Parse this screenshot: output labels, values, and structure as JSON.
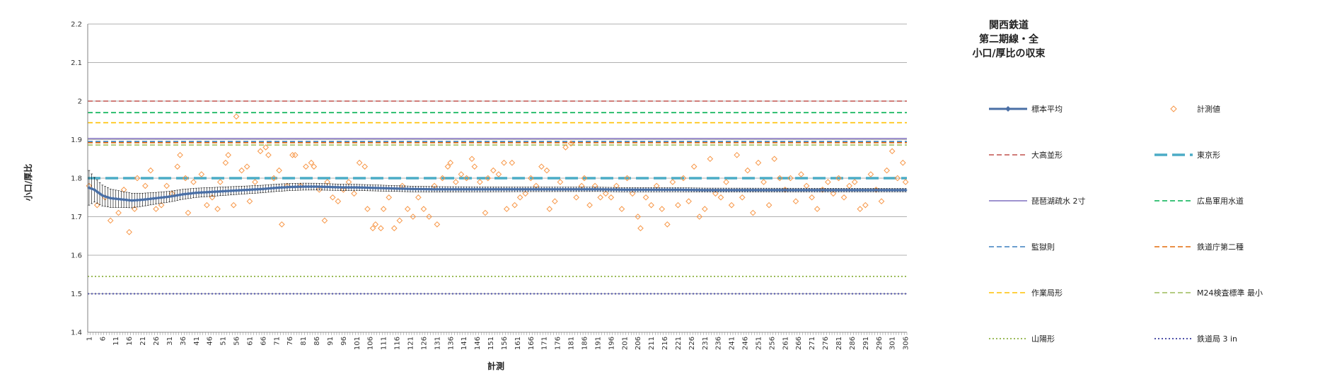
{
  "chart_data": {
    "type": "scatter",
    "title": [
      "関西鉄道",
      "第二期線・全",
      "小口/厚比の収束"
    ],
    "xlabel": "計測",
    "ylabel": "小口/厚比",
    "ylim": [
      1.4,
      2.2
    ],
    "y_ticks": [
      "1.4",
      "1.5",
      "1.6",
      "1.7",
      "1.8",
      "1.9",
      "2",
      "2.1",
      "2.2"
    ],
    "x_range": [
      1,
      306
    ],
    "x_ticks": [
      "1",
      "6",
      "11",
      "16",
      "21",
      "26",
      "31",
      "36",
      "41",
      "46",
      "51",
      "56",
      "61",
      "66",
      "71",
      "76",
      "81",
      "86",
      "91",
      "96",
      "101",
      "106",
      "111",
      "116",
      "121",
      "126",
      "131",
      "136",
      "141",
      "146",
      "151",
      "156",
      "161",
      "166",
      "171",
      "176",
      "181",
      "186",
      "191",
      "196",
      "201",
      "206",
      "211",
      "216",
      "221",
      "226",
      "231",
      "236",
      "241",
      "246",
      "251",
      "256",
      "261",
      "266",
      "271",
      "276",
      "281",
      "286",
      "291",
      "296",
      "301",
      "306"
    ],
    "grid": true,
    "legend_position": "right",
    "series": [
      {
        "name": "標本平均",
        "kind": "mean",
        "color": "#4a6fa5"
      },
      {
        "name": "計測値",
        "kind": "measured",
        "color": "#f79646"
      },
      {
        "name": "大高並形",
        "kind": "reference",
        "value": 2.0,
        "color": "#c0504d",
        "dash": "dash"
      },
      {
        "name": "東京形",
        "kind": "reference",
        "value": 1.8,
        "color": "#4bacc6",
        "dash": "longdash"
      },
      {
        "name": "琵琶湖疏水 2寸",
        "kind": "reference",
        "value": 1.903,
        "color": "#7f6fbf",
        "dash": "solid"
      },
      {
        "name": "広島軍用水道",
        "kind": "reference",
        "value": 1.97,
        "color": "#00b050",
        "dash": "dash"
      },
      {
        "name": "監獄則",
        "kind": "reference",
        "value": 1.895,
        "color": "#3b7fbf",
        "dash": "dash"
      },
      {
        "name": "鉄道庁第二種",
        "kind": "reference",
        "value": 1.892,
        "color": "#e46c0a",
        "dash": "dash"
      },
      {
        "name": "作業局形",
        "kind": "reference",
        "value": 1.944,
        "color": "#ffc000",
        "dash": "dash"
      },
      {
        "name": "M24検査標準 最小",
        "kind": "reference",
        "value": 1.886,
        "color": "#9bbb59",
        "dash": "dash"
      },
      {
        "name": "山陽形",
        "kind": "reference",
        "value": 1.545,
        "color": "#9bbb59",
        "dash": "dot"
      },
      {
        "name": "鉄道局 3 in",
        "kind": "reference",
        "value": 1.5,
        "color": "#4f52a8",
        "dash": "dot"
      }
    ],
    "mean_values": [
      {
        "x": 1,
        "y": 1.775
      },
      {
        "x": 3,
        "y": 1.77
      },
      {
        "x": 6,
        "y": 1.755
      },
      {
        "x": 9,
        "y": 1.748
      },
      {
        "x": 13,
        "y": 1.745
      },
      {
        "x": 17,
        "y": 1.742
      },
      {
        "x": 21,
        "y": 1.744
      },
      {
        "x": 26,
        "y": 1.748
      },
      {
        "x": 31,
        "y": 1.752
      },
      {
        "x": 36,
        "y": 1.758
      },
      {
        "x": 41,
        "y": 1.762
      },
      {
        "x": 46,
        "y": 1.764
      },
      {
        "x": 51,
        "y": 1.766
      },
      {
        "x": 56,
        "y": 1.768
      },
      {
        "x": 61,
        "y": 1.77
      },
      {
        "x": 66,
        "y": 1.772
      },
      {
        "x": 71,
        "y": 1.775
      },
      {
        "x": 76,
        "y": 1.777
      },
      {
        "x": 81,
        "y": 1.778
      },
      {
        "x": 86,
        "y": 1.778
      },
      {
        "x": 91,
        "y": 1.777
      },
      {
        "x": 96,
        "y": 1.776
      },
      {
        "x": 101,
        "y": 1.776
      },
      {
        "x": 106,
        "y": 1.775
      },
      {
        "x": 111,
        "y": 1.774
      },
      {
        "x": 121,
        "y": 1.772
      },
      {
        "x": 131,
        "y": 1.771
      },
      {
        "x": 141,
        "y": 1.771
      },
      {
        "x": 151,
        "y": 1.771
      },
      {
        "x": 161,
        "y": 1.771
      },
      {
        "x": 171,
        "y": 1.771
      },
      {
        "x": 181,
        "y": 1.771
      },
      {
        "x": 191,
        "y": 1.771
      },
      {
        "x": 201,
        "y": 1.77
      },
      {
        "x": 211,
        "y": 1.77
      },
      {
        "x": 221,
        "y": 1.77
      },
      {
        "x": 231,
        "y": 1.769
      },
      {
        "x": 241,
        "y": 1.769
      },
      {
        "x": 251,
        "y": 1.769
      },
      {
        "x": 261,
        "y": 1.769
      },
      {
        "x": 271,
        "y": 1.769
      },
      {
        "x": 281,
        "y": 1.769
      },
      {
        "x": 291,
        "y": 1.769
      },
      {
        "x": 306,
        "y": 1.769
      }
    ],
    "error_half_widths": [
      {
        "x": 1,
        "e": 0.045
      },
      {
        "x": 3,
        "e": 0.032
      },
      {
        "x": 6,
        "e": 0.027
      },
      {
        "x": 9,
        "e": 0.024
      },
      {
        "x": 13,
        "e": 0.021
      },
      {
        "x": 17,
        "e": 0.019
      },
      {
        "x": 21,
        "e": 0.017
      },
      {
        "x": 26,
        "e": 0.015
      },
      {
        "x": 31,
        "e": 0.014
      },
      {
        "x": 41,
        "e": 0.012
      },
      {
        "x": 51,
        "e": 0.011
      },
      {
        "x": 61,
        "e": 0.01
      },
      {
        "x": 81,
        "e": 0.009
      },
      {
        "x": 101,
        "e": 0.008
      },
      {
        "x": 131,
        "e": 0.007
      },
      {
        "x": 161,
        "e": 0.006
      },
      {
        "x": 201,
        "e": 0.0055
      },
      {
        "x": 251,
        "e": 0.005
      },
      {
        "x": 306,
        "e": 0.0045
      }
    ],
    "measured_points": [
      [
        1,
        1.78
      ],
      [
        4,
        1.73
      ],
      [
        7,
        1.75
      ],
      [
        9,
        1.69
      ],
      [
        12,
        1.71
      ],
      [
        14,
        1.77
      ],
      [
        16,
        1.66
      ],
      [
        18,
        1.72
      ],
      [
        19,
        1.8
      ],
      [
        22,
        1.78
      ],
      [
        24,
        1.82
      ],
      [
        26,
        1.72
      ],
      [
        28,
        1.73
      ],
      [
        30,
        1.78
      ],
      [
        32,
        1.76
      ],
      [
        34,
        1.83
      ],
      [
        35,
        1.86
      ],
      [
        37,
        1.8
      ],
      [
        38,
        1.71
      ],
      [
        40,
        1.79
      ],
      [
        43,
        1.81
      ],
      [
        45,
        1.73
      ],
      [
        47,
        1.75
      ],
      [
        49,
        1.72
      ],
      [
        50,
        1.79
      ],
      [
        52,
        1.84
      ],
      [
        53,
        1.86
      ],
      [
        55,
        1.73
      ],
      [
        56,
        1.96
      ],
      [
        58,
        1.82
      ],
      [
        60,
        1.83
      ],
      [
        61,
        1.74
      ],
      [
        63,
        1.79
      ],
      [
        65,
        1.87
      ],
      [
        67,
        1.88
      ],
      [
        68,
        1.86
      ],
      [
        70,
        1.8
      ],
      [
        72,
        1.82
      ],
      [
        73,
        1.68
      ],
      [
        75,
        1.78
      ],
      [
        77,
        1.86
      ],
      [
        78,
        1.86
      ],
      [
        80,
        1.78
      ],
      [
        82,
        1.83
      ],
      [
        84,
        1.84
      ],
      [
        85,
        1.83
      ],
      [
        87,
        1.77
      ],
      [
        89,
        1.69
      ],
      [
        90,
        1.79
      ],
      [
        92,
        1.75
      ],
      [
        94,
        1.74
      ],
      [
        96,
        1.77
      ],
      [
        98,
        1.79
      ],
      [
        100,
        1.76
      ],
      [
        102,
        1.84
      ],
      [
        104,
        1.83
      ],
      [
        105,
        1.72
      ],
      [
        107,
        1.67
      ],
      [
        108,
        1.68
      ],
      [
        110,
        1.67
      ],
      [
        111,
        1.72
      ],
      [
        113,
        1.75
      ],
      [
        115,
        1.67
      ],
      [
        117,
        1.69
      ],
      [
        118,
        1.78
      ],
      [
        120,
        1.72
      ],
      [
        122,
        1.7
      ],
      [
        124,
        1.75
      ],
      [
        126,
        1.72
      ],
      [
        128,
        1.7
      ],
      [
        130,
        1.78
      ],
      [
        131,
        1.68
      ],
      [
        133,
        1.8
      ],
      [
        135,
        1.83
      ],
      [
        136,
        1.84
      ],
      [
        138,
        1.79
      ],
      [
        140,
        1.81
      ],
      [
        142,
        1.8
      ],
      [
        144,
        1.85
      ],
      [
        145,
        1.83
      ],
      [
        147,
        1.79
      ],
      [
        149,
        1.71
      ],
      [
        150,
        1.8
      ],
      [
        152,
        1.82
      ],
      [
        154,
        1.81
      ],
      [
        156,
        1.84
      ],
      [
        157,
        1.72
      ],
      [
        159,
        1.84
      ],
      [
        160,
        1.73
      ],
      [
        162,
        1.75
      ],
      [
        164,
        1.76
      ],
      [
        166,
        1.8
      ],
      [
        168,
        1.78
      ],
      [
        170,
        1.83
      ],
      [
        172,
        1.82
      ],
      [
        173,
        1.72
      ],
      [
        175,
        1.74
      ],
      [
        177,
        1.79
      ],
      [
        179,
        1.88
      ],
      [
        181,
        1.89
      ],
      [
        183,
        1.75
      ],
      [
        185,
        1.78
      ],
      [
        186,
        1.8
      ],
      [
        188,
        1.73
      ],
      [
        190,
        1.78
      ],
      [
        192,
        1.75
      ],
      [
        194,
        1.76
      ],
      [
        196,
        1.75
      ],
      [
        198,
        1.78
      ],
      [
        200,
        1.72
      ],
      [
        202,
        1.8
      ],
      [
        204,
        1.76
      ],
      [
        206,
        1.7
      ],
      [
        207,
        1.67
      ],
      [
        209,
        1.75
      ],
      [
        211,
        1.73
      ],
      [
        213,
        1.78
      ],
      [
        215,
        1.72
      ],
      [
        217,
        1.68
      ],
      [
        219,
        1.79
      ],
      [
        221,
        1.73
      ],
      [
        223,
        1.8
      ],
      [
        225,
        1.74
      ],
      [
        227,
        1.83
      ],
      [
        229,
        1.7
      ],
      [
        231,
        1.72
      ],
      [
        233,
        1.85
      ],
      [
        235,
        1.76
      ],
      [
        237,
        1.75
      ],
      [
        239,
        1.79
      ],
      [
        241,
        1.73
      ],
      [
        243,
        1.86
      ],
      [
        245,
        1.75
      ],
      [
        247,
        1.82
      ],
      [
        249,
        1.71
      ],
      [
        251,
        1.84
      ],
      [
        253,
        1.79
      ],
      [
        255,
        1.73
      ],
      [
        257,
        1.85
      ],
      [
        259,
        1.8
      ],
      [
        261,
        1.77
      ],
      [
        263,
        1.8
      ],
      [
        265,
        1.74
      ],
      [
        267,
        1.81
      ],
      [
        269,
        1.78
      ],
      [
        271,
        1.75
      ],
      [
        273,
        1.72
      ],
      [
        275,
        1.77
      ],
      [
        277,
        1.79
      ],
      [
        279,
        1.76
      ],
      [
        281,
        1.8
      ],
      [
        283,
        1.75
      ],
      [
        285,
        1.78
      ],
      [
        287,
        1.79
      ],
      [
        289,
        1.72
      ],
      [
        291,
        1.73
      ],
      [
        293,
        1.81
      ],
      [
        295,
        1.77
      ],
      [
        297,
        1.74
      ],
      [
        299,
        1.82
      ],
      [
        301,
        1.87
      ],
      [
        303,
        1.8
      ],
      [
        305,
        1.84
      ],
      [
        306,
        1.79
      ]
    ]
  }
}
